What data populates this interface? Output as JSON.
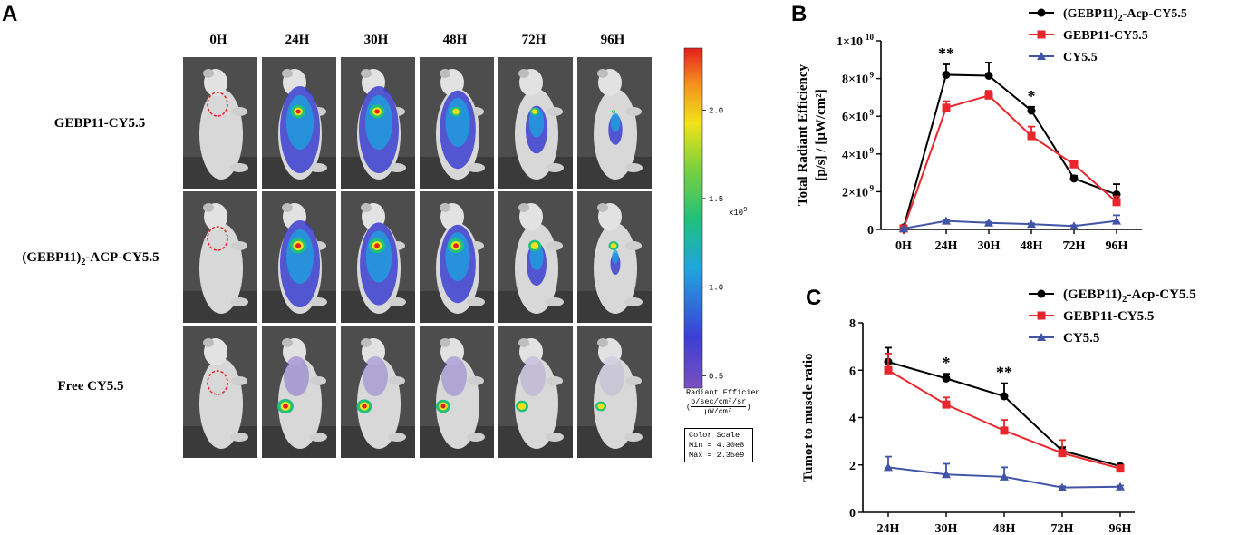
{
  "panel_a": {
    "letter": "A",
    "timepoints": [
      "0H",
      "24H",
      "30H",
      "48H",
      "72H",
      "96H"
    ],
    "rows": [
      "GEBP11-CY5.5",
      "(GEBP11)",
      "Free CY5.5"
    ],
    "row2_sub": "2",
    "row2_rest": "-ACP-CY5.5",
    "colorbar": {
      "ticks": [
        "2.0",
        "1.5",
        "1.0",
        "0.5"
      ],
      "tick_values": [
        2.0,
        1.5,
        1.0,
        0.5
      ],
      "range": [
        0.43,
        2.35
      ],
      "multiplier": "x10",
      "multiplier_exp": "9",
      "unit_line1": "Radiant Efficien",
      "unit_line2": "(",
      "unit_num": "p/sec/cm²/sr",
      "unit_den": "µW/cm²",
      "unit_close": ")",
      "scale_title": "Color Scale",
      "scale_min": "Min = 4.30e8",
      "scale_max": "Max = 2.35e9"
    }
  },
  "chart_data": [
    {
      "type": "line",
      "letter": "B",
      "categories": [
        "0H",
        "24H",
        "30H",
        "48H",
        "72H",
        "96H"
      ],
      "ylabel_line1": "Total Radiant Efficiency",
      "ylabel_line2": "[p/s] / [µW/cm²]",
      "ylim": [
        0,
        10
      ],
      "y_ticks": [
        0,
        2,
        4,
        6,
        8,
        10
      ],
      "y_tick_labels": [
        "0",
        "2×10",
        "4×10",
        "6×10",
        "8×10",
        "1×10"
      ],
      "y_tick_exps": [
        "",
        "9",
        "9",
        "9",
        "9",
        "10"
      ],
      "legend_position": "top-right",
      "series": [
        {
          "name_main": "(GEBP11)",
          "name_sub": "2",
          "name_rest": "-Acp-CY5.5",
          "color": "#000000",
          "marker": "circle",
          "values": [
            0.1,
            8.2,
            8.15,
            6.3,
            2.7,
            1.85
          ],
          "errors": [
            0.05,
            0.55,
            0.7,
            0.2,
            0.15,
            0.55
          ]
        },
        {
          "name_main": "GEBP11-CY5.5",
          "name_sub": "",
          "name_rest": "",
          "color": "#e8262b",
          "marker": "square",
          "values": [
            0.05,
            6.45,
            7.1,
            4.95,
            3.45,
            1.45
          ],
          "errors": [
            0.05,
            0.35,
            0.25,
            0.5,
            0.1,
            0.3
          ]
        },
        {
          "name_main": "CY5.5",
          "name_sub": "",
          "name_rest": "",
          "color": "#4154a6",
          "marker": "triangle",
          "values": [
            0.05,
            0.45,
            0.35,
            0.28,
            0.18,
            0.45
          ],
          "errors": [
            0.02,
            0.05,
            0.05,
            0.04,
            0.04,
            0.3
          ]
        }
      ],
      "annotations": [
        {
          "label": "**",
          "category": "24H"
        },
        {
          "label": "*",
          "category": "48H"
        }
      ]
    },
    {
      "type": "line",
      "letter": "C",
      "categories": [
        "24H",
        "30H",
        "48H",
        "72H",
        "96H"
      ],
      "ylabel": "Tumor to muscle ratio",
      "ylim": [
        0,
        8
      ],
      "y_ticks": [
        0,
        2,
        4,
        6,
        8
      ],
      "y_tick_labels": [
        "0",
        "2",
        "4",
        "6",
        "8"
      ],
      "legend_position": "top-right",
      "series": [
        {
          "name_main": "(GEBP11)",
          "name_sub": "2",
          "name_rest": "-Acp-CY5.5",
          "color": "#000000",
          "marker": "circle",
          "values": [
            6.35,
            5.65,
            4.9,
            2.6,
            1.95
          ],
          "errors": [
            0.6,
            0.2,
            0.55,
            0.15,
            0.05
          ]
        },
        {
          "name_main": "GEBP11-CY5.5",
          "name_sub": "",
          "name_rest": "",
          "color": "#e8262b",
          "marker": "square",
          "values": [
            6.0,
            4.55,
            3.45,
            2.5,
            1.85
          ],
          "errors": [
            0.7,
            0.3,
            0.45,
            0.55,
            0.05
          ]
        },
        {
          "name_main": "CY5.5",
          "name_sub": "",
          "name_rest": "",
          "color": "#4154a6",
          "marker": "triangle",
          "values": [
            1.9,
            1.6,
            1.5,
            1.05,
            1.08
          ],
          "errors": [
            0.45,
            0.45,
            0.4,
            0.05,
            0.05
          ]
        }
      ],
      "annotations": [
        {
          "label": "*",
          "category": "30H"
        },
        {
          "label": "**",
          "category": "48H"
        }
      ]
    }
  ]
}
